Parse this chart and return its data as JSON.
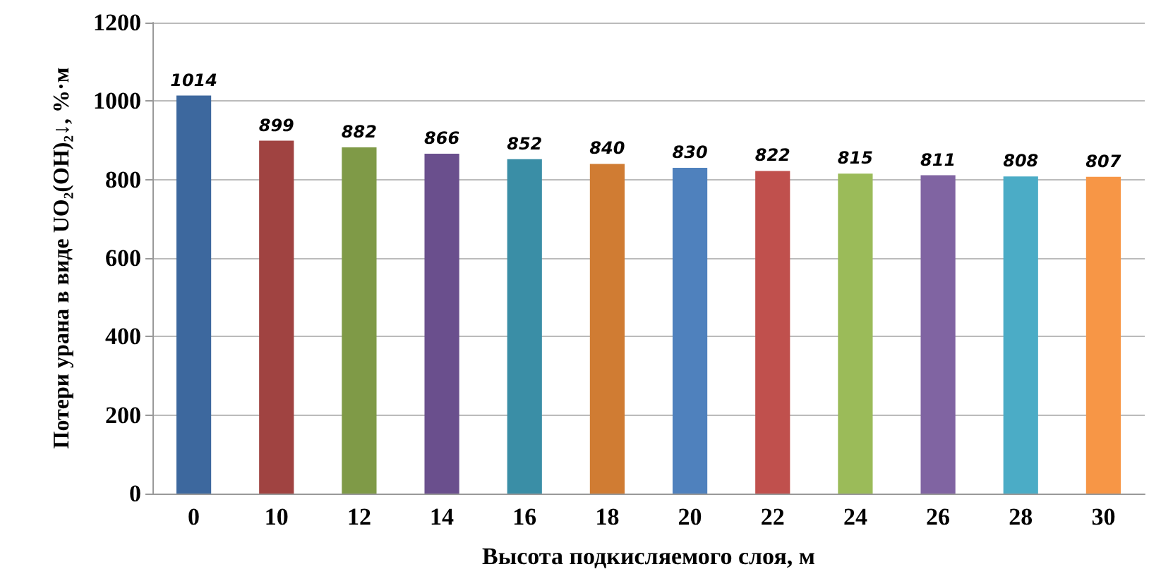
{
  "chart_data": {
    "type": "bar",
    "xlabel": "Высота подкисляемого слоя, м",
    "ylabel": "Потери урана в виде UO₂(OH)₂↓, %·м",
    "categories": [
      "0",
      "10",
      "12",
      "14",
      "16",
      "18",
      "20",
      "22",
      "24",
      "26",
      "28",
      "30"
    ],
    "values": [
      1014,
      899,
      882,
      866,
      852,
      840,
      830,
      822,
      815,
      811,
      808,
      807
    ],
    "colors": [
      "#3d689e",
      "#a04341",
      "#7f9a47",
      "#6a4f8d",
      "#3a8ea6",
      "#d07c33",
      "#4f81bd",
      "#c0504d",
      "#9bbb59",
      "#8064a2",
      "#4bacc6",
      "#f79646"
    ],
    "ylim": [
      0,
      1200
    ],
    "yticks": [
      0,
      200,
      400,
      600,
      800,
      1000,
      1200
    ],
    "grid": "y",
    "data_labels": true
  }
}
